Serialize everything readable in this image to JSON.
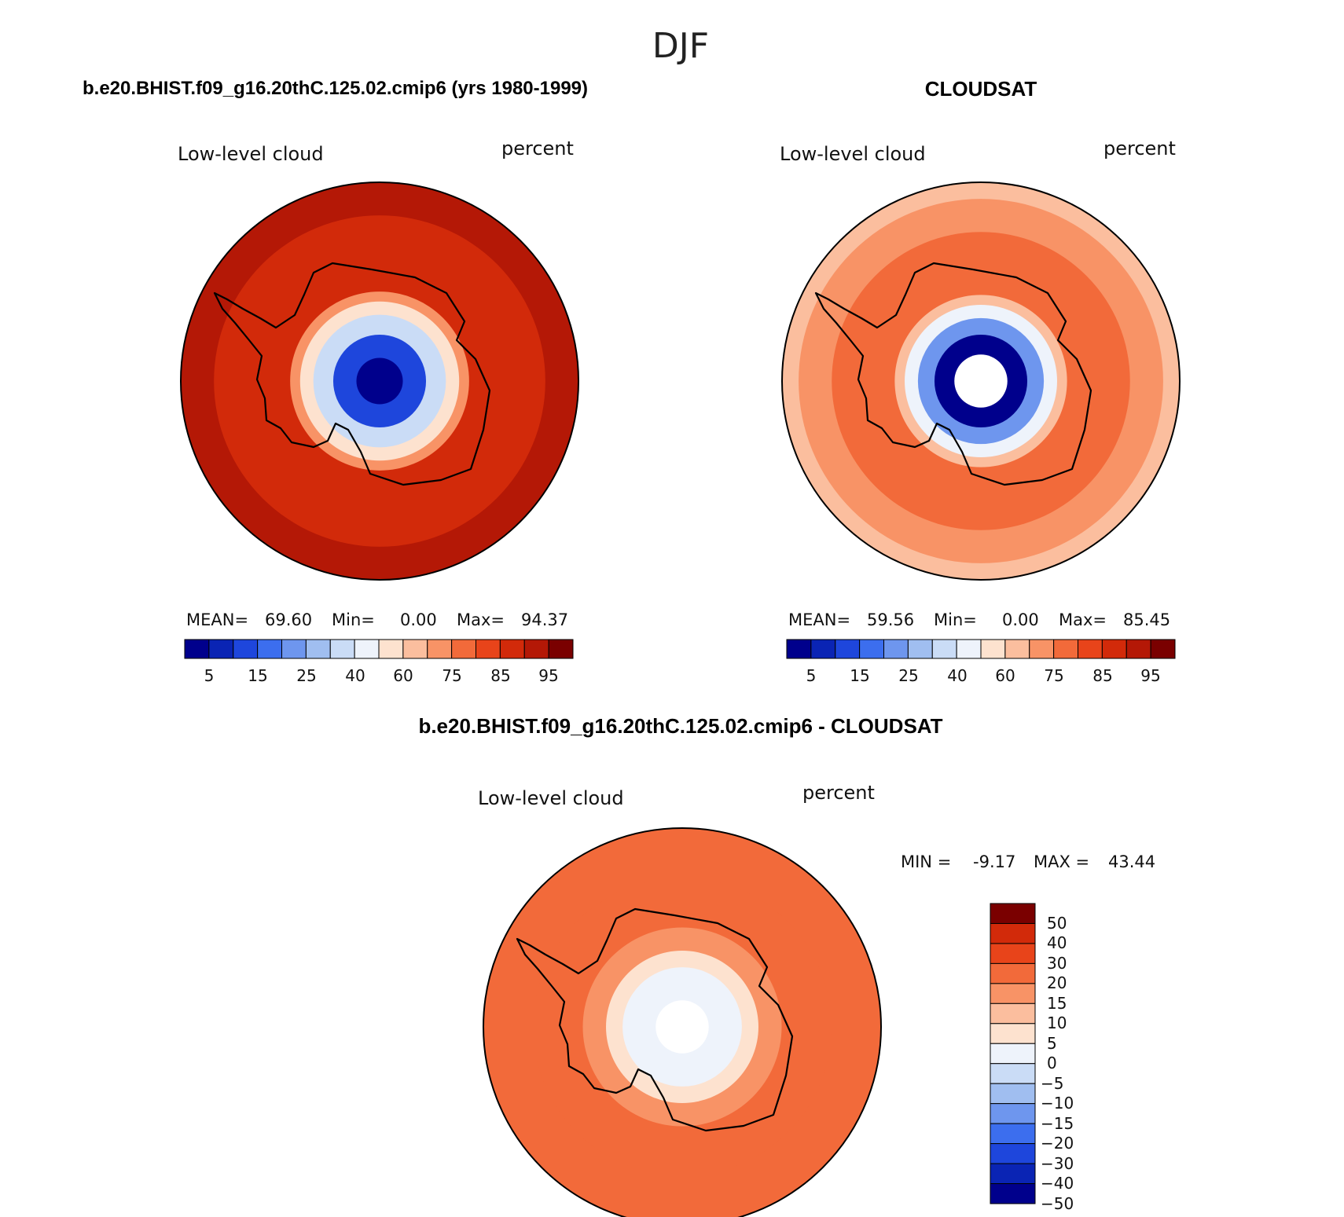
{
  "page_title": "DJF",
  "colors": {
    "seq": [
      "#00008c",
      "#0a24b4",
      "#1e46dc",
      "#3c6eee",
      "#6e96ee",
      "#a0bef0",
      "#cadcf6",
      "#eef3fb",
      "#fde2cf",
      "#fbbe9e",
      "#f89366",
      "#f26a3a",
      "#e8441a",
      "#d22a0a",
      "#b41806",
      "#7a0000"
    ],
    "diff": [
      "#00008c",
      "#0a24b4",
      "#1e46dc",
      "#3c6eee",
      "#6e96ee",
      "#a0bef0",
      "#cadcf6",
      "#eef3fb",
      "#fde2cf",
      "#fbbe9e",
      "#f89366",
      "#f26a3a",
      "#e8441a",
      "#d22a0a",
      "#7a0000"
    ]
  },
  "chart_data": [
    {
      "type": "heatmap",
      "projection": "polar-stereographic-south",
      "title": "b.e20.BHIST.f09_g16.20thC.125.02.cmip6 (yrs 1980-1999)",
      "left_label": "Low-level cloud",
      "right_label": "percent",
      "stats": {
        "mean_label": "MEAN=",
        "mean": "69.60",
        "min_label": "Min=",
        "min": "0.00",
        "max_label": "Max=",
        "max": "94.37"
      },
      "colorbar_ticks": [
        "5",
        "15",
        "25",
        "40",
        "60",
        "75",
        "85",
        "95"
      ],
      "zones": [
        {
          "lat_from": -90,
          "lat_to": -83,
          "value": 2
        },
        {
          "lat_from": -83,
          "lat_to": -76,
          "value": 10
        },
        {
          "lat_from": -76,
          "lat_to": -70,
          "value": 35
        },
        {
          "lat_from": -70,
          "lat_to": -66,
          "value": 55
        },
        {
          "lat_from": -66,
          "lat_to": -63,
          "value": 72
        },
        {
          "lat_from": -63,
          "lat_to": -40,
          "value": 86
        },
        {
          "lat_from": -40,
          "lat_to": -30,
          "value": 91
        }
      ]
    },
    {
      "type": "heatmap",
      "projection": "polar-stereographic-south",
      "title": "CLOUDSAT",
      "left_label": "Low-level cloud",
      "right_label": "percent",
      "stats": {
        "mean_label": "MEAN=",
        "mean": "59.56",
        "min_label": "Min=",
        "min": "0.00",
        "max_label": "Max=",
        "max": "85.45"
      },
      "colorbar_ticks": [
        "5",
        "15",
        "25",
        "40",
        "60",
        "75",
        "85",
        "95"
      ],
      "missing_pole_lat": -82,
      "zones": [
        {
          "lat_from": -82,
          "lat_to": -76,
          "value": 3
        },
        {
          "lat_from": -76,
          "lat_to": -71,
          "value": 20
        },
        {
          "lat_from": -71,
          "lat_to": -67,
          "value": 45
        },
        {
          "lat_from": -67,
          "lat_to": -64,
          "value": 62
        },
        {
          "lat_from": -64,
          "lat_to": -45,
          "value": 78
        },
        {
          "lat_from": -45,
          "lat_to": -35,
          "value": 73
        },
        {
          "lat_from": -35,
          "lat_to": -30,
          "value": 66
        }
      ]
    },
    {
      "type": "heatmap",
      "projection": "polar-stereographic-south",
      "title": "b.e20.BHIST.f09_g16.20thC.125.02.cmip6 - CLOUDSAT",
      "left_label": "Low-level cloud",
      "right_label": "percent",
      "stats": {
        "min_label": "MIN =",
        "min": "-9.17",
        "max_label": "MAX =",
        "max": "43.44"
      },
      "colorbar_ticks": [
        "50",
        "40",
        "30",
        "20",
        "15",
        "10",
        "5",
        "0",
        "−5",
        "−10",
        "−15",
        "−20",
        "−30",
        "−40",
        "−50"
      ],
      "missing_pole_lat": -82,
      "zones": [
        {
          "lat_from": -82,
          "lat_to": -72,
          "value": -3
        },
        {
          "lat_from": -72,
          "lat_to": -67,
          "value": 3
        },
        {
          "lat_from": -67,
          "lat_to": -60,
          "value": 12
        },
        {
          "lat_from": -60,
          "lat_to": -45,
          "value": 15
        },
        {
          "lat_from": -45,
          "lat_to": -30,
          "value": 18
        }
      ]
    }
  ]
}
